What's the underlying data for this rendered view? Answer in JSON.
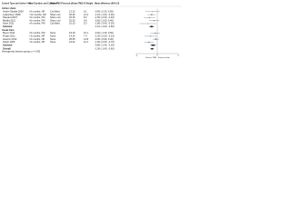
{
  "chart_data": {
    "type": "forest",
    "headers": [
      "Control Type and Author Year",
      "Pain Duration and Condition",
      "Sham TMS Protocol",
      "n (Sham:TMS)",
      "% Weight",
      "Mean difference (95% CI)"
    ],
    "groups": [
      {
        "name": "Active sham",
        "studies": [
          {
            "label": "Andre-Obadia 2006",
            "duration": ">6 months, NP",
            "protocol": "Coil tilted",
            "n": "12:12",
            "weight": "6.1",
            "md": -0.9,
            "lo": -2.3,
            "hi": 0.5,
            "ci_label": "-0.90 (-2.30, 0.50)"
          },
          {
            "label": "Lefaucheur 2008",
            "duration": ">12 months, NP",
            "protocol": "Sham coil",
            "n": "46:46",
            "weight": "12.4",
            "md": -1.1,
            "lo": -1.9,
            "hi": -0.3,
            "ci_label": "-1.10 (-1.90, -0.30)"
          },
          {
            "label": "Passard 2007",
            "duration": ">6 months, FM",
            "protocol": "Sham coil",
            "n": "15:15",
            "weight": "8.2",
            "md": -1.5,
            "lo": -2.6,
            "hi": -0.4,
            "ci_label": "-1.50 (-2.60, -0.40)"
          },
          {
            "label": "Mhalla 2011",
            "duration": ">6 months, FM",
            "protocol": "Sham coil",
            "n": "20:20",
            "weight": "9.0",
            "md": -0.6,
            "lo": -1.6,
            "hi": 0.4,
            "ci_label": "-0.60 (-1.60, 0.40)"
          },
          {
            "label": "Short 2011",
            "duration": ">6 months, FM",
            "protocol": "Coil tilted",
            "n": "10:10",
            "weight": "5.3",
            "md": -1.8,
            "lo": -3.4,
            "hi": -0.2,
            "ci_label": "-1.80 (-3.40, -0.20)"
          }
        ],
        "subtotal": {
          "label": "Subtotal",
          "md": -1.1,
          "lo": -1.6,
          "hi": -0.6,
          "ci_label": "-1.10 (-1.60, -0.60)"
        }
      },
      {
        "name": "Usual Care",
        "studies": [
          {
            "label": "Boyer 2014",
            "duration": ">6 months, FM",
            "protocol": "None",
            "n": "19:19",
            "weight": "10.1",
            "md": -0.4,
            "lo": -1.3,
            "hi": 0.5,
            "ci_label": "-0.40 (-1.30, 0.50)"
          },
          {
            "label": "Fregni 2011",
            "duration": ">3 months, NP",
            "protocol": "None",
            "n": "14:14",
            "weight": "7.4",
            "md": -1.3,
            "lo": -2.5,
            "hi": -0.1,
            "ci_label": "-1.30 (-2.50, -0.10)"
          },
          {
            "label": "Hosomi 2013",
            "duration": ">6 months, NP",
            "protocol": "None",
            "n": "35:35",
            "weight": "13.8",
            "md": -0.3,
            "lo": -0.9,
            "hi": 0.3,
            "ci_label": "-0.30 (-0.90, 0.30)"
          },
          {
            "label": "Khedr 2005",
            "duration": ">3 months, NP",
            "protocol": "None",
            "n": "24:24",
            "weight": "11.2",
            "md": -1.6,
            "lo": -2.5,
            "hi": -0.7,
            "ci_label": "-1.60 (-2.50, -0.70)"
          }
        ],
        "subtotal": {
          "label": "Subtotal",
          "md": -0.8,
          "lo": -1.4,
          "hi": -0.2,
          "ci_label": "-0.80 (-1.40, -0.20)"
        }
      }
    ],
    "overall": {
      "label": "Overall",
      "md": -1.0,
      "lo": -1.4,
      "hi": -0.6,
      "ci_label": "-1.00 (-1.40, -0.60)"
    },
    "heterogeneity": "Heterogeneity between groups: p = 0.452",
    "xlim": [
      -4,
      4
    ],
    "xticks": [
      -4,
      0,
      4
    ],
    "left_label": "Favors TMS",
    "right_label": "Favors sham",
    "color": "#7a9cc6"
  }
}
